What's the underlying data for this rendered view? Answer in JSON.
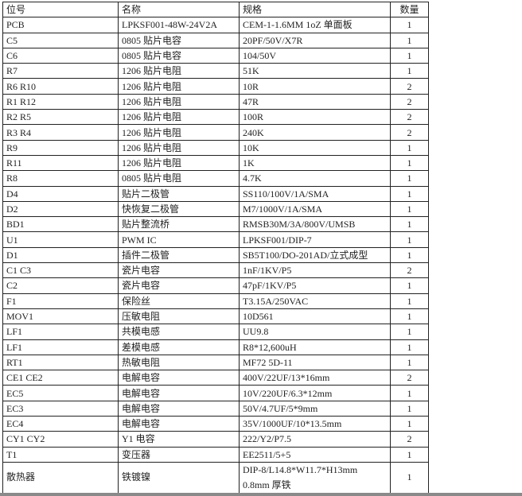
{
  "header": [
    "位号",
    "名称",
    "规格",
    "数量"
  ],
  "rows": [
    [
      "PCB",
      "LPKSF001-48W-24V2A",
      "CEM-1-1.6MM 1oZ 单面板",
      "1"
    ],
    [
      "C5",
      "0805 贴片电容",
      "20PF/50V/X7R",
      "1"
    ],
    [
      "C6",
      "0805 贴片电容",
      "104/50V",
      "1"
    ],
    [
      "R7",
      "1206 贴片电阻",
      "51K",
      "1"
    ],
    [
      "R6 R10",
      "1206 贴片电阻",
      "10R",
      "2"
    ],
    [
      "R1 R12",
      "1206 贴片电阻",
      "47R",
      "2"
    ],
    [
      "R2 R5",
      "1206 贴片电阻",
      "100R",
      "2"
    ],
    [
      "R3 R4",
      "1206 贴片电阻",
      "240K",
      "2"
    ],
    [
      "R9",
      "1206 贴片电阻",
      "10K",
      "1"
    ],
    [
      "R11",
      "1206 贴片电阻",
      "1K",
      "1"
    ],
    [
      "R8",
      "0805 贴片电阻",
      "4.7K",
      "1"
    ],
    [
      "D4",
      "贴片二极管",
      "SS110/100V/1A/SMA",
      "1"
    ],
    [
      "D2",
      "快恢复二极管",
      "M7/1000V/1A/SMA",
      "1"
    ],
    [
      "BD1",
      "贴片整流桥",
      "RMSB30M/3A/800V/UMSB",
      "1"
    ],
    [
      "U1",
      "PWM IC",
      "LPKSF001/DIP-7",
      "1"
    ],
    [
      "D1",
      "插件二极管",
      "SB5T100/DO-201AD/立式成型",
      "1"
    ],
    [
      "C1 C3",
      "瓷片电容",
      "1nF/1KV/P5",
      "2"
    ],
    [
      "C2",
      "瓷片电容",
      "47pF/1KV/P5",
      "1"
    ],
    [
      "F1",
      "保险丝",
      "T3.15A/250VAC",
      "1"
    ],
    [
      "MOV1",
      "压敏电阻",
      "10D561",
      "1"
    ],
    [
      "LF1",
      "共模电感",
      "UU9.8",
      "1"
    ],
    [
      "LF1",
      "差模电感",
      "R8*12,600uH",
      "1"
    ],
    [
      "RT1",
      "热敏电阻",
      "MF72 5D-11",
      "1"
    ],
    [
      "CE1 CE2",
      "电解电容",
      "400V/22UF/13*16mm",
      "2"
    ],
    [
      "EC5",
      "电解电容",
      "10V/220UF/6.3*12mm",
      "1"
    ],
    [
      "EC3",
      "电解电容",
      "50V/4.7UF/5*9mm",
      "1"
    ],
    [
      "EC4",
      "电解电容",
      "35V/1000UF/10*13.5mm",
      "1"
    ],
    [
      "CY1 CY2",
      "Y1 电容",
      "222/Y2/P7.5",
      "2"
    ],
    [
      "T1",
      "变压器",
      "EE2511/5+5",
      "1"
    ]
  ],
  "last_row": {
    "ref": "散热器",
    "name": "铁镀镍",
    "spec_line1": "DIP-8/L14.8*W11.7*H13mm",
    "spec_line2": "0.8mm 厚铁",
    "qty": "1"
  }
}
